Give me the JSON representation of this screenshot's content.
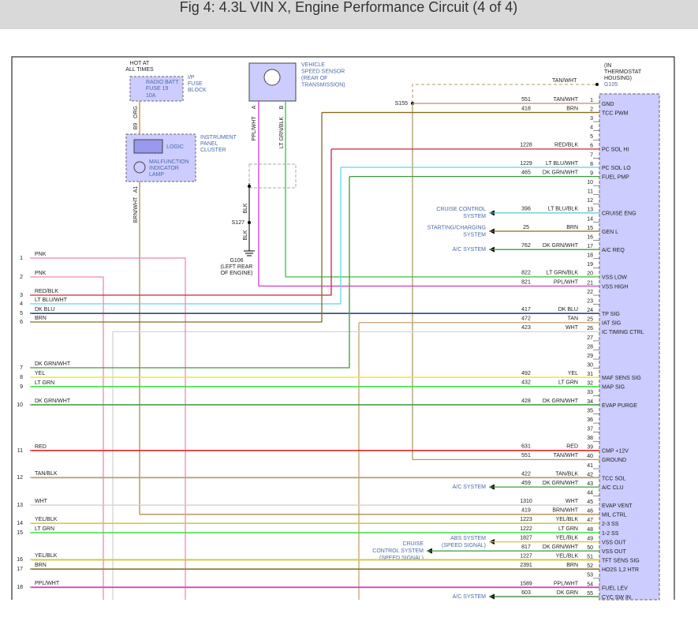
{
  "header": {
    "title": "Fig 4: 4.3L VIN X, Engine Performance Circuit (4 of 4)"
  },
  "fuse": {
    "hot": [
      "HOT AT",
      "ALL TIMES"
    ],
    "name": [
      "RADIO BATT",
      "FUSE 19"
    ],
    "rating": "10A",
    "block": [
      "I/P",
      "FUSE",
      "BLOCK"
    ],
    "pin": "B9",
    "wire": "ORG",
    "stroke": "#e08020"
  },
  "cluster": {
    "logic": "LOGIC",
    "lamp": [
      "MALFUNCTION",
      "INDICATOR",
      "LAMP"
    ],
    "name": [
      "INSTRUMENT",
      "PANEL",
      "CLUSTER"
    ],
    "pin": "A1",
    "wire": "BRN/WHT"
  },
  "vss": {
    "name": [
      "VEHICLE",
      "SPEED SENSOR",
      "(REAR OF",
      "TRANSMISSION)"
    ],
    "pin_a": "A",
    "pin_b": "B",
    "wire_a": "PPL/WHT",
    "wire_b": "LT GRN/BLK",
    "ground_wire_1": "BLK",
    "splice": "S127",
    "ground_wire_2": "BLK",
    "ground": [
      "G106",
      "(LEFT REAR",
      "OF ENGINE)"
    ]
  },
  "ground_top": {
    "location": [
      "(IN",
      "THERMOSTAT",
      "HOUSING)"
    ],
    "ground": "G105",
    "wire": "TAN/WHT",
    "splice": "S155"
  },
  "left_pins": [
    {
      "num": 1,
      "wire": "PNK",
      "stroke": "#f088b8"
    },
    {
      "num": 2,
      "wire": "PNK",
      "stroke": "#f088b8"
    },
    {
      "num": 3,
      "wire": "RED/BLK",
      "stroke": "#c8283c"
    },
    {
      "num": 4,
      "wire": "LT BLU/WHT",
      "stroke": "#5cd8ec"
    },
    {
      "num": 5,
      "wire": "DK BLU",
      "stroke": "#1c3c8c"
    },
    {
      "num": 6,
      "wire": "BRN",
      "stroke": "#8a6a20"
    },
    {
      "num": 7,
      "wire": "DK GRN/WHT",
      "stroke": "#3c9c3c"
    },
    {
      "num": 8,
      "wire": "YEL",
      "stroke": "#f0e838"
    },
    {
      "num": 9,
      "wire": "LT GRN",
      "stroke": "#38e038"
    },
    {
      "num": 10,
      "wire": "DK GRN/WHT",
      "stroke": "#3c9c3c"
    },
    {
      "num": 11,
      "wire": "RED",
      "stroke": "#e01818"
    },
    {
      "num": 12,
      "wire": "TAN/BLK",
      "stroke": "#b0a078"
    },
    {
      "num": 13,
      "wire": "WHT",
      "stroke": "#d4d4d4"
    },
    {
      "num": 14,
      "wire": "YEL/BLK",
      "stroke": "#d8c840"
    },
    {
      "num": 15,
      "wire": "LT GRN",
      "stroke": "#38e038"
    },
    {
      "num": 16,
      "wire": "YEL/BLK",
      "stroke": "#d8c840"
    },
    {
      "num": 17,
      "wire": "BRN",
      "stroke": "#8a6a20"
    },
    {
      "num": 18,
      "wire": "PPL/WHT",
      "stroke": "#d038d0"
    }
  ],
  "connector": {
    "pins": [
      {
        "num": 1,
        "circuit": "551",
        "wire": "TAN/WHT",
        "name": "GND",
        "stroke": "#b09868"
      },
      {
        "num": 2,
        "circuit": "418",
        "wire": "BRN",
        "name": "TCC PWM",
        "stroke": "#8a6a20"
      },
      {
        "num": 3
      },
      {
        "num": 4
      },
      {
        "num": 5
      },
      {
        "num": 6,
        "circuit": "1228",
        "wire": "RED/BLK",
        "name": "PC SOL HI",
        "stroke": "#c8283c"
      },
      {
        "num": 7
      },
      {
        "num": 8,
        "circuit": "1229",
        "wire": "LT BLU/WHT",
        "name": "PC SOL LO",
        "stroke": "#5cd8ec"
      },
      {
        "num": 9,
        "circuit": "465",
        "wire": "DK GRN/WHT",
        "name": "FUEL PMP",
        "stroke": "#3c9c3c"
      },
      {
        "num": 10
      },
      {
        "num": 11
      },
      {
        "num": 12
      },
      {
        "num": 13,
        "circuit": "396",
        "wire": "LT BLU/BLK",
        "name": "CRUISE ENG",
        "stroke": "#50c8dc",
        "system": [
          "CRUISE CONTROL",
          "SYSTEM"
        ]
      },
      {
        "num": 14
      },
      {
        "num": 15,
        "circuit": "25",
        "wire": "BRN",
        "name": "GEN L",
        "stroke": "#8a6a20",
        "system": [
          "STARTING/CHARGING",
          "SYSTEM"
        ]
      },
      {
        "num": 16
      },
      {
        "num": 17,
        "circuit": "762",
        "wire": "DK GRN/WHT",
        "name": "A/C REQ",
        "stroke": "#3c9c3c",
        "system": [
          "A/C SYSTEM"
        ]
      },
      {
        "num": 18
      },
      {
        "num": 19
      },
      {
        "num": 20,
        "circuit": "822",
        "wire": "LT GRN/BLK",
        "name": "VSS LOW",
        "stroke": "#38c038"
      },
      {
        "num": 21,
        "circuit": "821",
        "wire": "PPL/WHT",
        "name": "VSS HIGH",
        "stroke": "#d038d0"
      },
      {
        "num": 22
      },
      {
        "num": 23
      },
      {
        "num": 24,
        "circuit": "417",
        "wire": "DK BLU",
        "name": "TP SIG",
        "stroke": "#1c3c8c"
      },
      {
        "num": 25,
        "circuit": "472",
        "wire": "TAN",
        "name": "IAT SIG",
        "stroke": "#c8a070"
      },
      {
        "num": 26,
        "circuit": "423",
        "wire": "WHT",
        "name": "IC TIMING CTRL",
        "stroke": "#d4d4d4"
      },
      {
        "num": 27
      },
      {
        "num": 28
      },
      {
        "num": 29
      },
      {
        "num": 30
      },
      {
        "num": 31,
        "circuit": "492",
        "wire": "YEL",
        "name": "MAF SENS SIG",
        "stroke": "#f0e838"
      },
      {
        "num": 32,
        "circuit": "432",
        "wire": "LT GRN",
        "name": "MAP SIG",
        "stroke": "#38e038"
      },
      {
        "num": 33
      },
      {
        "num": 34,
        "circuit": "428",
        "wire": "DK GRN/WHT",
        "name": "EVAP PURGE",
        "stroke": "#3c9c3c"
      },
      {
        "num": 35
      },
      {
        "num": 36
      },
      {
        "num": 37
      },
      {
        "num": 38
      },
      {
        "num": 39,
        "circuit": "631",
        "wire": "RED",
        "name": "CMP +12V",
        "stroke": "#e01818"
      },
      {
        "num": 40,
        "circuit": "551",
        "wire": "TAN/WHT",
        "name": "GROUND",
        "stroke": "#b09868"
      },
      {
        "num": 41
      },
      {
        "num": 42,
        "circuit": "422",
        "wire": "TAN/BLK",
        "name": "TCC SOL",
        "stroke": "#b0a078"
      },
      {
        "num": 43,
        "circuit": "459",
        "wire": "DK GRN/WHT",
        "name": "A/C CLU",
        "stroke": "#3c9c3c",
        "system": [
          "A/C SYSTEM"
        ]
      },
      {
        "num": 44
      },
      {
        "num": 45,
        "circuit": "1310",
        "wire": "WHT",
        "name": "EVAP VENT",
        "stroke": "#d4d4d4"
      },
      {
        "num": 46,
        "circuit": "419",
        "wire": "BRN/WHT",
        "name": "MIL CTRL",
        "stroke": "#b08c50"
      },
      {
        "num": 47,
        "circuit": "1223",
        "wire": "YEL/BLK",
        "name": "2-3 SS",
        "stroke": "#d8c840"
      },
      {
        "num": 48,
        "circuit": "1222",
        "wire": "LT GRN",
        "name": "1-2 SS",
        "stroke": "#38e038"
      },
      {
        "num": 49,
        "circuit": "1827",
        "wire": "YEL/BLK",
        "name": "VSS OUT",
        "stroke": "#d8c840",
        "system": [
          "ABS SYSTEM",
          "(SPEED SIGNAL)"
        ]
      },
      {
        "num": 50,
        "circuit": "817",
        "wire": "DK GRN/WHT",
        "name": "VSS OUT",
        "stroke": "#3c9c3c",
        "system": [
          "CRUISE",
          "CONTROL SYSTEM",
          "(SPEED SIGNAL)"
        ]
      },
      {
        "num": 51,
        "circuit": "1227",
        "wire": "YEL/BLK",
        "name": "TFT SENS SIG",
        "stroke": "#d8c840"
      },
      {
        "num": 52,
        "circuit": "2391",
        "wire": "BRN",
        "name": "HO2S 1,2 HTR",
        "stroke": "#8a6a20"
      },
      {
        "num": 53
      },
      {
        "num": 54,
        "circuit": "1589",
        "wire": "PPL/WHT",
        "name": "FUEL LEV",
        "stroke": "#d038d0"
      },
      {
        "num": 55,
        "circuit": "603",
        "wire": "DK GRN",
        "name": "CYC SW IN",
        "stroke": "#2a7a2a",
        "system": [
          "A/C SYSTEM"
        ]
      }
    ]
  }
}
